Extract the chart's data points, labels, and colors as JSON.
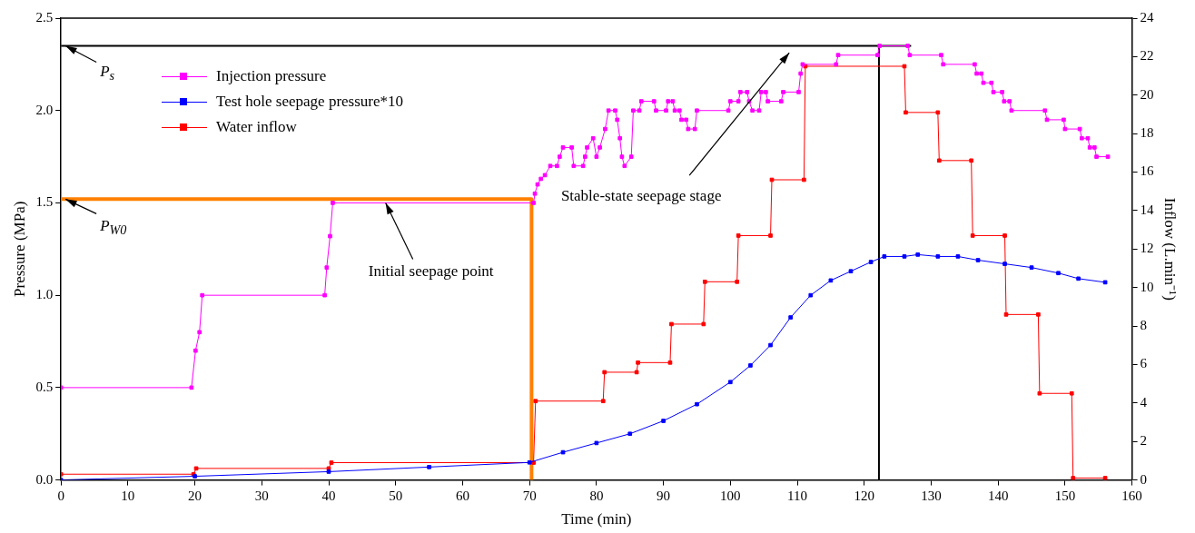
{
  "chart_data": {
    "type": "line",
    "xlabel": "Time (min)",
    "ylabel": "Pressure (MPa)",
    "y2label": "Inflow (L.min⁻¹)",
    "xlim": [
      0,
      160
    ],
    "xticks": [
      0,
      10,
      20,
      30,
      40,
      50,
      60,
      70,
      80,
      90,
      100,
      110,
      120,
      130,
      140,
      150,
      160
    ],
    "ylim": [
      0,
      2.5
    ],
    "yticks": [
      {
        "value": 0,
        "label": "0.0"
      },
      {
        "value": 0.5,
        "label": "0.5"
      },
      {
        "value": 1,
        "label": "1.0"
      },
      {
        "value": 1.5,
        "label": "1.5"
      },
      {
        "value": 2,
        "label": "2.0"
      },
      {
        "value": 2.5,
        "label": "2.5"
      }
    ],
    "y2lim": [
      0,
      24
    ],
    "y2ticks": [
      0,
      2,
      4,
      6,
      8,
      10,
      12,
      14,
      16,
      18,
      20,
      22,
      24
    ],
    "legend": "top left",
    "marker": "square",
    "series": [
      {
        "name": "Injection pressure",
        "color": "#ff00ff",
        "x": [
          0,
          19.5,
          20.1,
          20.7,
          21.1,
          39.4,
          39.7,
          40.2,
          40.6,
          70.6,
          70.8,
          71.2,
          71.7,
          72.3,
          73.1,
          74.1,
          74.5,
          75,
          76.3,
          76.6,
          78,
          78.3,
          78.6,
          79.5,
          80,
          80.5,
          81.3,
          81.8,
          82.8,
          83.1,
          83.5,
          83.8,
          84.2,
          85.2,
          85.5,
          86.4,
          86.7,
          88.6,
          88.9,
          90.4,
          90.7,
          91.4,
          91.7,
          92.4,
          92.7,
          93.4,
          93.7,
          94.7,
          95,
          99.7,
          100,
          101.2,
          101.5,
          102.5,
          102.8,
          103.3,
          104.3,
          104.6,
          105.3,
          105.6,
          107.6,
          107.9,
          110.2,
          110.5,
          110.8,
          115.8,
          116.1,
          122,
          122.3,
          126.5,
          126.8,
          131.5,
          131.8,
          136.5,
          136.8,
          137.5,
          137.8,
          139,
          139.3,
          140.6,
          140.9,
          141.7,
          142,
          147,
          147.3,
          149.8,
          150,
          152.2,
          152.5,
          153.4,
          153.7,
          154.4,
          154.7,
          156.4
        ],
        "values": [
          0.5,
          0.5,
          0.7,
          0.8,
          1.0,
          1.0,
          1.15,
          1.32,
          1.5,
          1.5,
          1.55,
          1.6,
          1.63,
          1.65,
          1.7,
          1.7,
          1.75,
          1.8,
          1.8,
          1.7,
          1.7,
          1.75,
          1.8,
          1.85,
          1.75,
          1.8,
          1.9,
          2.0,
          2.0,
          1.95,
          1.85,
          1.75,
          1.7,
          1.75,
          2.0,
          2.0,
          2.05,
          2.05,
          2.0,
          2.0,
          2.05,
          2.05,
          2.0,
          2.0,
          1.95,
          1.95,
          1.9,
          1.9,
          2.0,
          2.0,
          2.05,
          2.05,
          2.1,
          2.1,
          2.05,
          2.0,
          2.0,
          2.1,
          2.1,
          2.05,
          2.05,
          2.1,
          2.1,
          2.2,
          2.25,
          2.25,
          2.3,
          2.3,
          2.35,
          2.35,
          2.3,
          2.3,
          2.25,
          2.25,
          2.2,
          2.2,
          2.15,
          2.15,
          2.1,
          2.1,
          2.05,
          2.05,
          2.0,
          2.0,
          1.95,
          1.95,
          1.9,
          1.9,
          1.85,
          1.85,
          1.8,
          1.8,
          1.75,
          1.75
        ]
      },
      {
        "name": "Test hole seepage pressure*10",
        "color": "#0000ff",
        "x": [
          0,
          20,
          40,
          55,
          70,
          75,
          80,
          85,
          90,
          95,
          100,
          103,
          106,
          109,
          112,
          115,
          118,
          121,
          123,
          126,
          128,
          131,
          134,
          137,
          141,
          145,
          149,
          152,
          156
        ],
        "values": [
          0,
          0.02,
          0.045,
          0.07,
          0.095,
          0.15,
          0.2,
          0.25,
          0.32,
          0.41,
          0.53,
          0.62,
          0.73,
          0.88,
          1.0,
          1.08,
          1.13,
          1.18,
          1.21,
          1.21,
          1.22,
          1.21,
          1.21,
          1.19,
          1.17,
          1.15,
          1.12,
          1.09,
          1.07
        ]
      },
      {
        "name": "Water inflow",
        "color": "#ff0000",
        "axis": "y2",
        "x": [
          0,
          19.8,
          20.2,
          40,
          40.4,
          70.6,
          70.9,
          81,
          81.2,
          86,
          86.2,
          91,
          91.2,
          96,
          96.2,
          101,
          101.2,
          106,
          106.2,
          111,
          111.2,
          126,
          126.2,
          131,
          131.2,
          136,
          136.2,
          141,
          141.2,
          146,
          146.2,
          151,
          151.2,
          156
        ],
        "values": [
          0.3,
          0.3,
          0.6,
          0.6,
          0.9,
          0.9,
          4.1,
          4.1,
          5.6,
          5.6,
          6.1,
          6.1,
          8.1,
          8.1,
          10.3,
          10.3,
          12.7,
          12.7,
          15.6,
          15.6,
          21.5,
          21.5,
          19.1,
          19.1,
          16.6,
          16.6,
          12.7,
          12.7,
          8.6,
          8.6,
          4.5,
          4.5,
          0.1,
          0.1
        ]
      },
      {
        "color": "#ff8000",
        "marker": "none",
        "x": [
          0,
          70.3,
          70.3
        ],
        "values": [
          1.52,
          1.52,
          0
        ]
      },
      {
        "color": "#000000",
        "marker": "none",
        "x": [
          0,
          127
        ],
        "values": [
          2.35,
          2.35
        ]
      },
      {
        "color": "#000000",
        "marker": "none",
        "x": [
          122.2,
          122.2
        ],
        "values": [
          0,
          2.35
        ]
      }
    ],
    "annotations": [
      {
        "text": "P$_{s}$",
        "y": 2.35
      },
      {
        "text": "P$_{W0}$",
        "y": 1.52
      },
      {
        "text": "Initial seepage point",
        "x": 48.5,
        "y": 1.5
      },
      "Stable-state seepage stage"
    ]
  }
}
